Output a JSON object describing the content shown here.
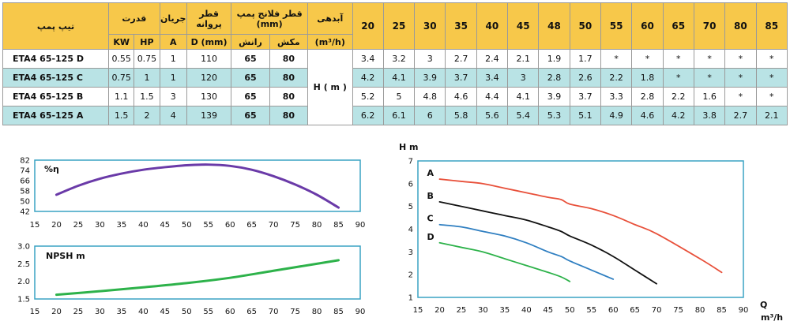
{
  "table": {
    "headers": {
      "model": "تیپ پمپ",
      "power": "قدرت",
      "current": "جریان",
      "impeller": "قطر پروانه",
      "flange": "قطر فلانج پمپ (mm)",
      "flow": "آبدهی",
      "flow_unit": "(m³/h)",
      "kw": "KW",
      "hp": "HP",
      "amp": "A",
      "dmm": "D (mm)",
      "outlet": "رانش",
      "inlet": "مکش"
    },
    "flows": [
      "20",
      "25",
      "30",
      "35",
      "40",
      "45",
      "48",
      "50",
      "55",
      "60",
      "65",
      "70",
      "80",
      "85"
    ],
    "head_label": "H ( m )",
    "rows": [
      {
        "model": "ETA4 65-125 D",
        "kw": "0.55",
        "hp": "0.75",
        "a": "1",
        "d": "110",
        "out": "65",
        "in": "80",
        "h": [
          "3.4",
          "3.2",
          "3",
          "2.7",
          "2.4",
          "2.1",
          "1.9",
          "1.7",
          "*",
          "*",
          "*",
          "*",
          "*",
          "*"
        ]
      },
      {
        "model": "ETA4 65-125 C",
        "kw": "0.75",
        "hp": "1",
        "a": "1",
        "d": "120",
        "out": "65",
        "in": "80",
        "h": [
          "4.2",
          "4.1",
          "3.9",
          "3.7",
          "3.4",
          "3",
          "2.8",
          "2.6",
          "2.2",
          "1.8",
          "*",
          "*",
          "*",
          "*"
        ]
      },
      {
        "model": "ETA4 65-125 B",
        "kw": "1.1",
        "hp": "1.5",
        "a": "3",
        "d": "130",
        "out": "65",
        "in": "80",
        "h": [
          "5.2",
          "5",
          "4.8",
          "4.6",
          "4.4",
          "4.1",
          "3.9",
          "3.7",
          "3.3",
          "2.8",
          "2.2",
          "1.6",
          "*",
          "*"
        ]
      },
      {
        "model": "ETA4 65-125 A",
        "kw": "1.5",
        "hp": "2",
        "a": "4",
        "d": "139",
        "out": "65",
        "in": "80",
        "h": [
          "6.2",
          "6.1",
          "6",
          "5.8",
          "5.6",
          "5.4",
          "5.3",
          "5.1",
          "4.9",
          "4.6",
          "4.2",
          "3.8",
          "2.7",
          "2.1"
        ]
      }
    ]
  },
  "colors": {
    "header": "#f7c84a",
    "row_alt": "#b9e3e5",
    "eff": "#6a3aa8",
    "npsh": "#2db24a",
    "curve_A": "#e8503a",
    "curve_B": "#111111",
    "curve_C": "#2f7fc1",
    "curve_D": "#2db24a",
    "frame": "#3aa3c4"
  },
  "chart_data": [
    {
      "type": "line",
      "title": "%η",
      "xlim": [
        15,
        90
      ],
      "ylim": [
        42,
        82
      ],
      "xticks": [
        "15",
        "20",
        "25",
        "30",
        "35",
        "40",
        "45",
        "50",
        "55",
        "60",
        "65",
        "70",
        "75",
        "80",
        "85",
        "90"
      ],
      "yticks": [
        "82",
        "74",
        "66",
        "58",
        "50",
        "42"
      ],
      "series": [
        {
          "x": [
            20,
            25,
            30,
            35,
            40,
            45,
            50,
            55,
            60,
            65,
            70,
            75,
            80,
            85
          ],
          "y": [
            55,
            62,
            67.5,
            71.5,
            74.5,
            76.5,
            78,
            78.5,
            77.5,
            74.5,
            69.5,
            63,
            55,
            45
          ]
        }
      ]
    },
    {
      "type": "line",
      "title": "NPSH m",
      "xlim": [
        15,
        90
      ],
      "ylim": [
        1.5,
        3.0
      ],
      "xticks": [
        "15",
        "20",
        "25",
        "30",
        "35",
        "40",
        "45",
        "50",
        "55",
        "60",
        "65",
        "70",
        "75",
        "80",
        "85",
        "90"
      ],
      "yticks": [
        "3.0",
        "2.5",
        "2.0",
        "1.5"
      ],
      "series": [
        {
          "x": [
            20,
            30,
            40,
            50,
            60,
            70,
            80,
            85
          ],
          "y": [
            1.62,
            1.72,
            1.83,
            1.95,
            2.1,
            2.3,
            2.5,
            2.6
          ]
        }
      ]
    },
    {
      "type": "line",
      "ylabel": "H m",
      "xlabel": "Q",
      "xunit": "m³/h",
      "xlim": [
        15,
        90
      ],
      "ylim": [
        1,
        7
      ],
      "xticks": [
        "15",
        "20",
        "25",
        "30",
        "35",
        "40",
        "45",
        "50",
        "55",
        "60",
        "65",
        "70",
        "75",
        "80",
        "85",
        "90"
      ],
      "yticks": [
        "7",
        "6",
        "5",
        "4",
        "3",
        "2",
        "1"
      ],
      "series": [
        {
          "name": "A",
          "x": [
            20,
            25,
            30,
            35,
            40,
            45,
            48,
            50,
            55,
            60,
            65,
            70,
            80,
            85
          ],
          "y": [
            6.2,
            6.1,
            6,
            5.8,
            5.6,
            5.4,
            5.3,
            5.1,
            4.9,
            4.6,
            4.2,
            3.8,
            2.7,
            2.1
          ]
        },
        {
          "name": "B",
          "x": [
            20,
            25,
            30,
            35,
            40,
            45,
            48,
            50,
            55,
            60,
            65,
            70
          ],
          "y": [
            5.2,
            5,
            4.8,
            4.6,
            4.4,
            4.1,
            3.9,
            3.7,
            3.3,
            2.8,
            2.2,
            1.6
          ]
        },
        {
          "name": "C",
          "x": [
            20,
            25,
            30,
            35,
            40,
            45,
            48,
            50,
            55,
            60
          ],
          "y": [
            4.2,
            4.1,
            3.9,
            3.7,
            3.4,
            3,
            2.8,
            2.6,
            2.2,
            1.8
          ]
        },
        {
          "name": "D",
          "x": [
            20,
            25,
            30,
            35,
            40,
            45,
            48,
            50
          ],
          "y": [
            3.4,
            3.2,
            3,
            2.7,
            2.4,
            2.1,
            1.9,
            1.7
          ]
        }
      ]
    }
  ]
}
